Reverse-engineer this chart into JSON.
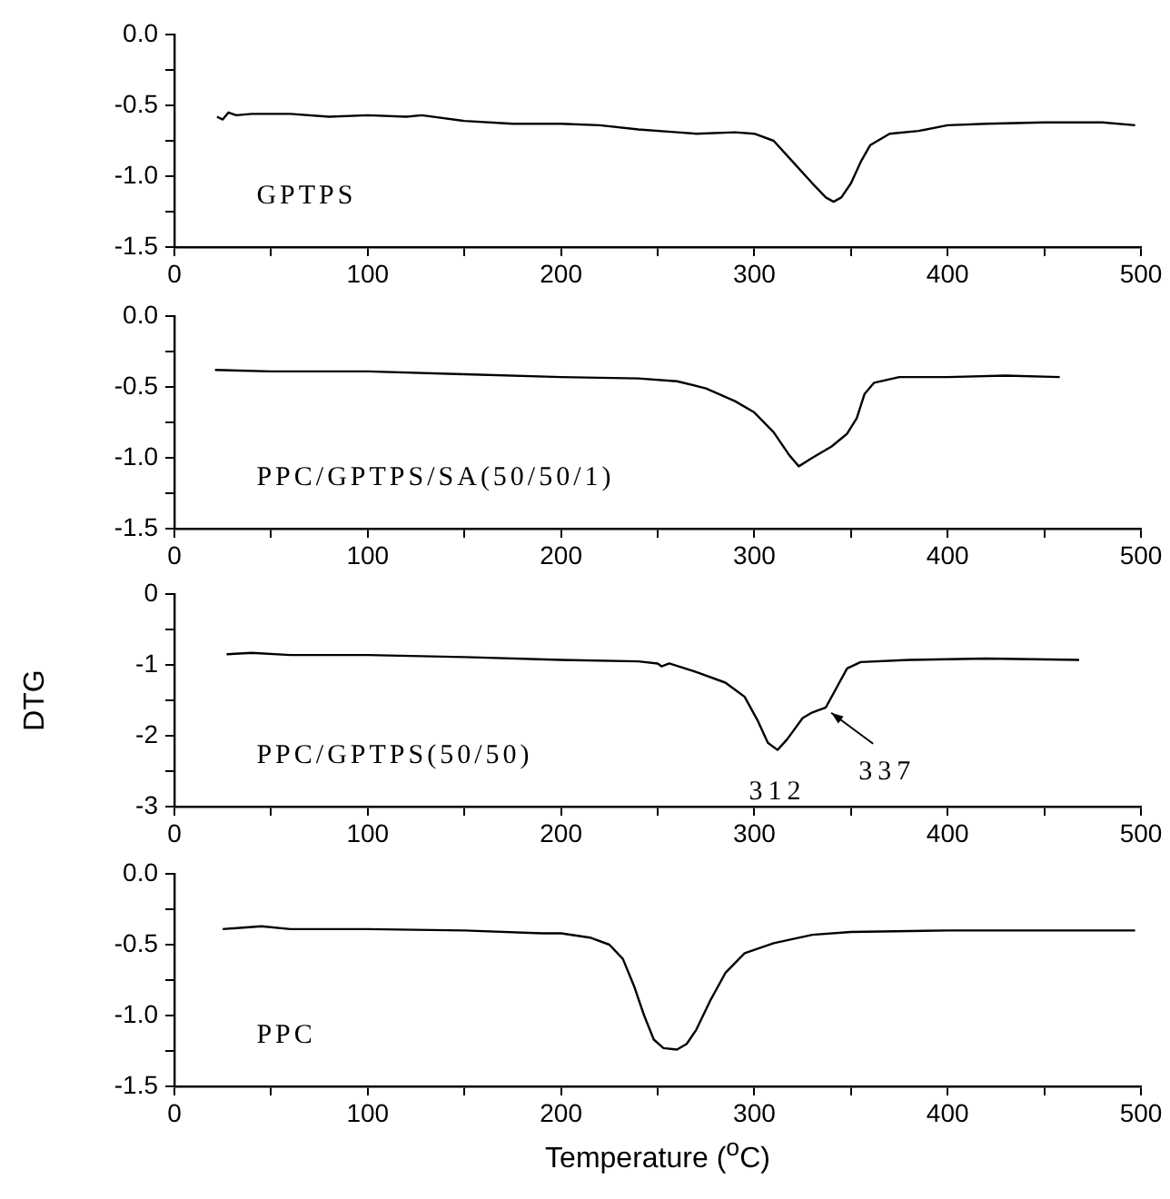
{
  "chart_data": [
    {
      "type": "line",
      "annotations": [
        "GPTPS"
      ],
      "xlim": [
        0,
        500
      ],
      "xticks": [
        0,
        {
          "value": 50,
          "label": null
        },
        100,
        {
          "value": 150,
          "label": null
        },
        200,
        {
          "value": 250,
          "label": null
        },
        300,
        {
          "value": 350,
          "label": null
        },
        400,
        {
          "value": 450,
          "label": null
        },
        500
      ],
      "ylim": [
        -1.5,
        0
      ],
      "yticks": [
        -1.5,
        {
          "value": -1.25,
          "label": null
        },
        {
          "value": -1,
          "label": "-1.0"
        },
        {
          "value": -0.75,
          "label": null
        },
        -0.5,
        {
          "value": -0.25,
          "label": null
        },
        {
          "value": 0,
          "label": "0.0"
        }
      ],
      "grid": false,
      "legend": false,
      "marker": "none",
      "line_style": "solid",
      "series": [
        {
          "color": "#000000",
          "x": [
            22,
            25,
            28,
            32,
            40,
            60,
            80,
            100,
            120,
            128,
            150,
            175,
            200,
            220,
            240,
            260,
            270,
            290,
            300,
            310,
            320,
            330,
            337,
            341,
            345,
            350,
            355,
            360,
            370,
            385,
            400,
            420,
            450,
            480,
            497
          ],
          "values": [
            -0.58,
            -0.6,
            -0.55,
            -0.57,
            -0.56,
            -0.56,
            -0.58,
            -0.57,
            -0.58,
            -0.57,
            -0.61,
            -0.63,
            -0.63,
            -0.64,
            -0.67,
            -0.69,
            -0.7,
            -0.69,
            -0.7,
            -0.75,
            -0.9,
            -1.05,
            -1.15,
            -1.18,
            -1.15,
            -1.05,
            -0.9,
            -0.78,
            -0.7,
            -0.68,
            -0.64,
            -0.63,
            -0.62,
            -0.62,
            -0.64
          ]
        }
      ]
    },
    {
      "type": "line",
      "annotations": [
        "PPC/GPTPS/SA(50/50/1)"
      ],
      "xlim": [
        0,
        500
      ],
      "xticks": [
        0,
        {
          "value": 50,
          "label": null
        },
        100,
        {
          "value": 150,
          "label": null
        },
        200,
        {
          "value": 250,
          "label": null
        },
        300,
        {
          "value": 350,
          "label": null
        },
        400,
        {
          "value": 450,
          "label": null
        },
        500
      ],
      "ylim": [
        -1.5,
        0
      ],
      "yticks": [
        -1.5,
        {
          "value": -1.25,
          "label": null
        },
        {
          "value": -1,
          "label": "-1.0"
        },
        {
          "value": -0.75,
          "label": null
        },
        -0.5,
        {
          "value": -0.25,
          "label": null
        },
        {
          "value": 0,
          "label": "0.0"
        }
      ],
      "grid": false,
      "legend": false,
      "marker": "none",
      "line_style": "solid",
      "series": [
        {
          "color": "#000000",
          "x": [
            21,
            50,
            100,
            150,
            200,
            240,
            260,
            275,
            290,
            300,
            310,
            318,
            323,
            330,
            340,
            348,
            353,
            357,
            362,
            375,
            400,
            430,
            458
          ],
          "values": [
            -0.38,
            -0.39,
            -0.39,
            -0.41,
            -0.43,
            -0.44,
            -0.46,
            -0.51,
            -0.6,
            -0.68,
            -0.82,
            -0.98,
            -1.06,
            -1.0,
            -0.92,
            -0.83,
            -0.72,
            -0.55,
            -0.47,
            -0.43,
            -0.43,
            -0.42,
            -0.43
          ]
        }
      ]
    },
    {
      "type": "line",
      "ylabel": "DTG",
      "annotations": [
        "PPC/GPTPS(50/50)",
        {
          "text": "312",
          "x": 312,
          "y": -2.2
        },
        {
          "text": "337",
          "x": 337,
          "y": -1.6
        }
      ],
      "xlim": [
        0,
        500
      ],
      "xticks": [
        0,
        {
          "value": 50,
          "label": null
        },
        100,
        {
          "value": 150,
          "label": null
        },
        200,
        {
          "value": 250,
          "label": null
        },
        300,
        {
          "value": 350,
          "label": null
        },
        400,
        {
          "value": 450,
          "label": null
        },
        500
      ],
      "ylim": [
        -3,
        0
      ],
      "yticks": [
        -3,
        {
          "value": -2.5,
          "label": null
        },
        -2,
        {
          "value": -1.5,
          "label": null
        },
        -1,
        {
          "value": -0.5,
          "label": null
        },
        0
      ],
      "grid": false,
      "legend": false,
      "marker": "none",
      "line_style": "solid",
      "series": [
        {
          "color": "#000000",
          "x": [
            27,
            40,
            60,
            100,
            150,
            200,
            240,
            250,
            252,
            256,
            270,
            285,
            295,
            302,
            307,
            312,
            317,
            325,
            330,
            337,
            342,
            348,
            355,
            380,
            420,
            468
          ],
          "values": [
            -0.85,
            -0.83,
            -0.86,
            -0.86,
            -0.89,
            -0.93,
            -0.95,
            -0.98,
            -1.02,
            -0.98,
            -1.1,
            -1.25,
            -1.45,
            -1.8,
            -2.1,
            -2.2,
            -2.05,
            -1.75,
            -1.67,
            -1.6,
            -1.35,
            -1.05,
            -0.96,
            -0.93,
            -0.91,
            -0.93
          ]
        }
      ]
    },
    {
      "type": "line",
      "xlabel": "Temperature ($^{o}$C)",
      "annotations": [
        "PPC"
      ],
      "xlim": [
        0,
        500
      ],
      "xticks": [
        0,
        {
          "value": 50,
          "label": null
        },
        100,
        {
          "value": 150,
          "label": null
        },
        200,
        {
          "value": 250,
          "label": null
        },
        300,
        {
          "value": 350,
          "label": null
        },
        400,
        {
          "value": 450,
          "label": null
        },
        500
      ],
      "ylim": [
        -1.5,
        0
      ],
      "yticks": [
        -1.5,
        {
          "value": -1.25,
          "label": null
        },
        {
          "value": -1,
          "label": "-1.0"
        },
        {
          "value": -0.75,
          "label": null
        },
        -0.5,
        {
          "value": -0.25,
          "label": null
        },
        {
          "value": 0,
          "label": "0.0"
        }
      ],
      "grid": false,
      "legend": false,
      "marker": "none",
      "line_style": "solid",
      "series": [
        {
          "color": "#000000",
          "x": [
            25,
            45,
            60,
            100,
            150,
            190,
            200,
            215,
            225,
            232,
            238,
            243,
            248,
            253,
            260,
            265,
            270,
            277,
            285,
            295,
            310,
            330,
            350,
            400,
            450,
            497
          ],
          "values": [
            -0.39,
            -0.37,
            -0.39,
            -0.39,
            -0.4,
            -0.42,
            -0.42,
            -0.45,
            -0.5,
            -0.6,
            -0.8,
            -1.0,
            -1.17,
            -1.23,
            -1.24,
            -1.2,
            -1.1,
            -0.9,
            -0.7,
            -0.56,
            -0.49,
            -0.43,
            -0.41,
            -0.4,
            -0.4,
            -0.4
          ]
        }
      ]
    }
  ]
}
